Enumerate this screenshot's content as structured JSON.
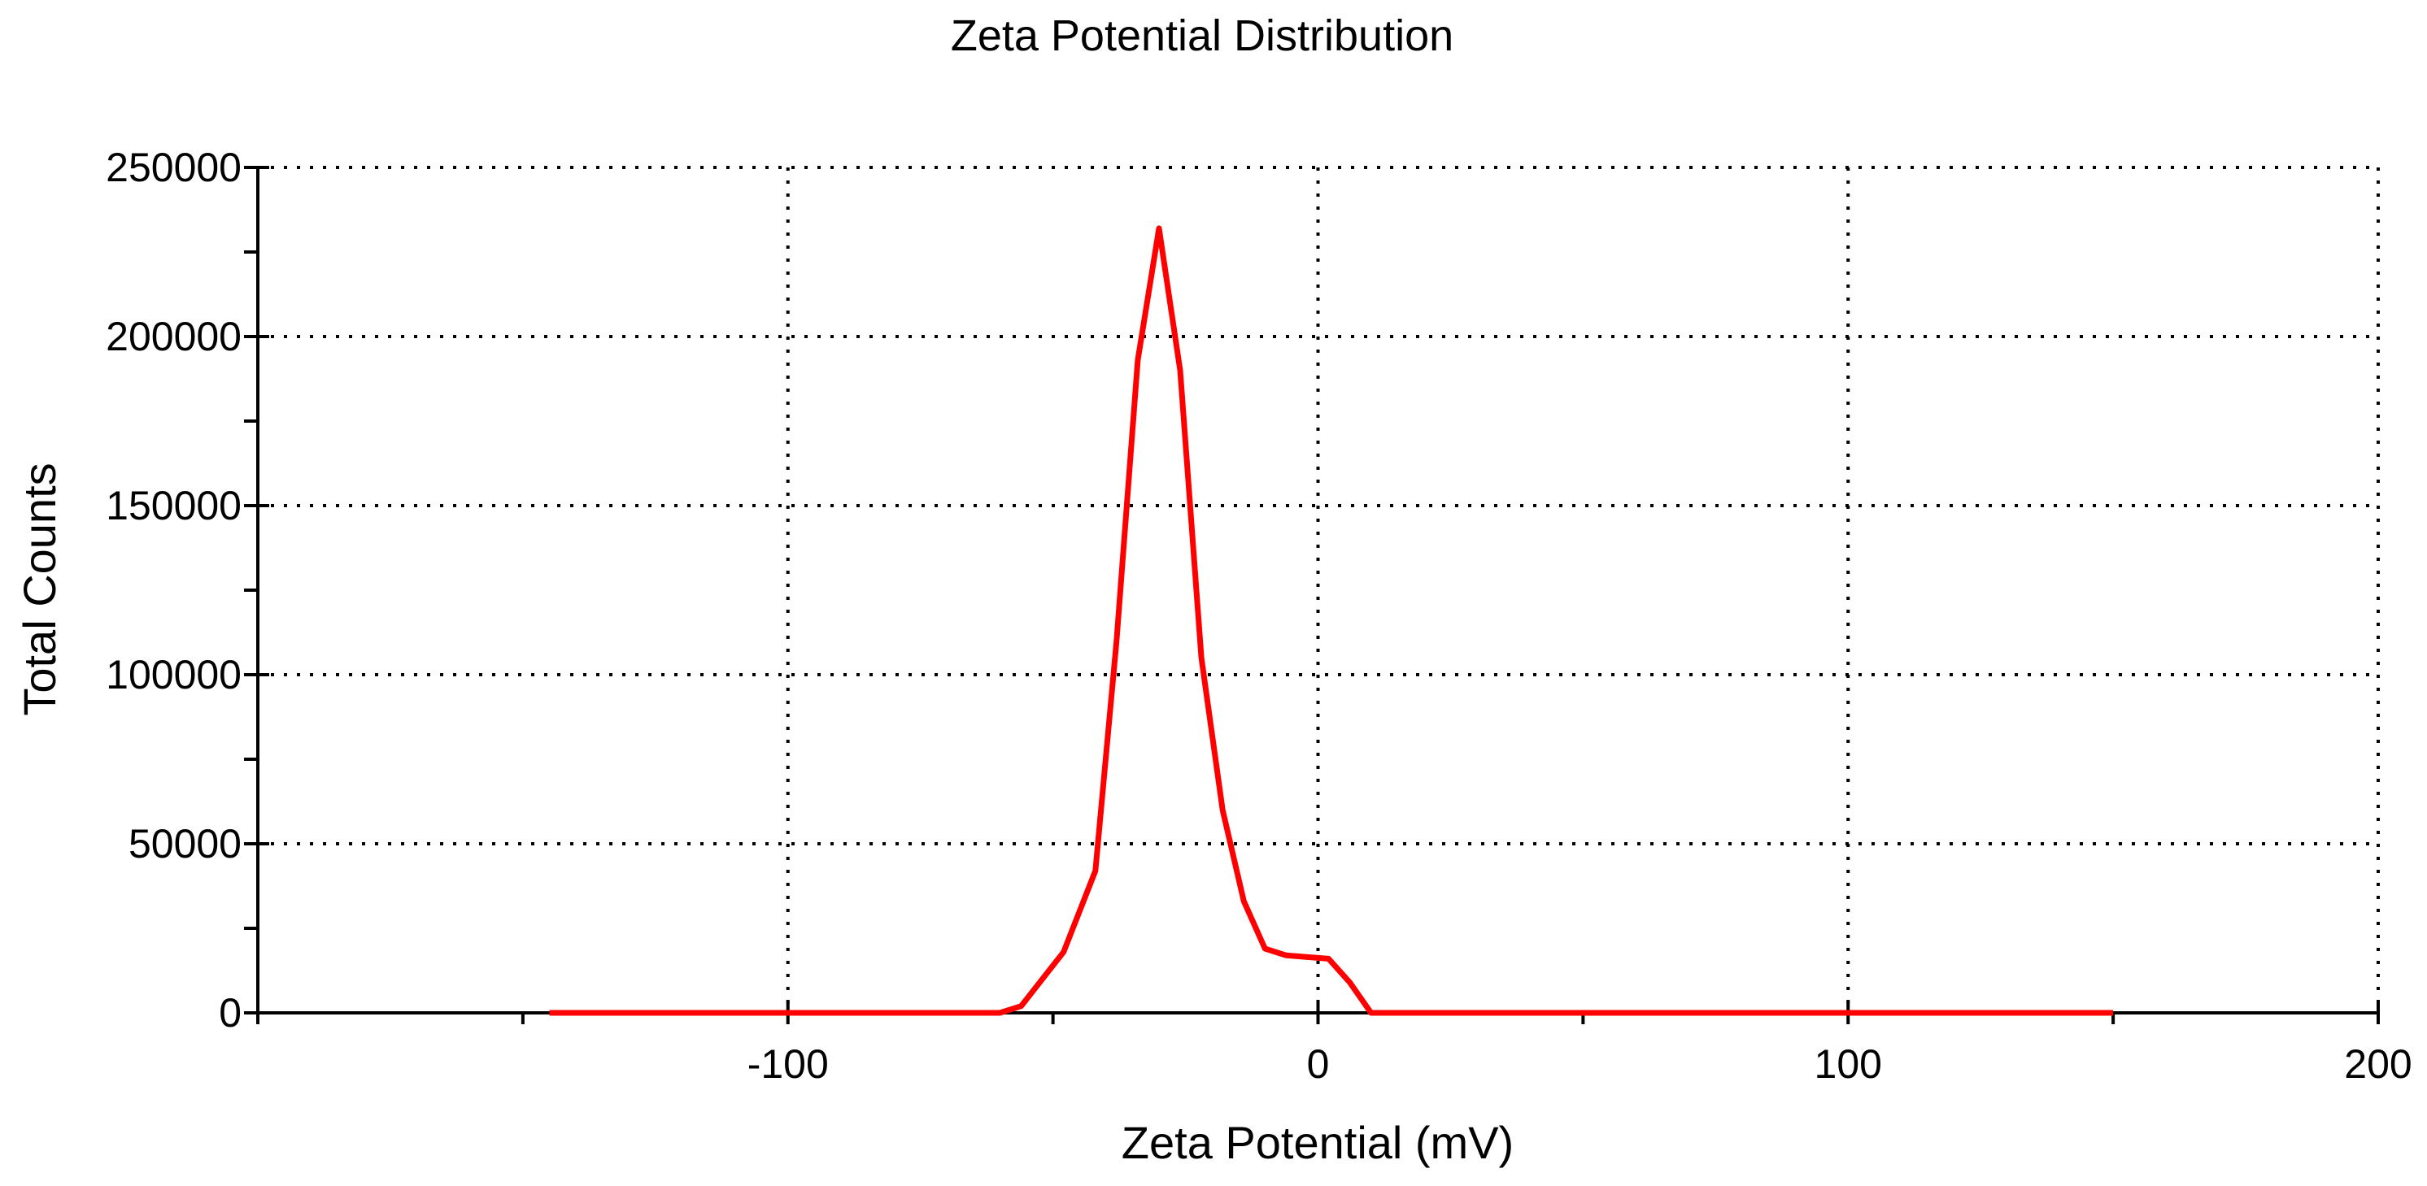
{
  "chart_data": {
    "type": "line",
    "title": "Zeta Potential Distribution",
    "xlabel": "Zeta Potential (mV)",
    "ylabel": "Total Counts",
    "xlim": [
      -200,
      200
    ],
    "ylim": [
      0,
      250000
    ],
    "x_ticks": [
      -100,
      0,
      100,
      200
    ],
    "x_tick_labels": [
      "-100",
      "0",
      "100",
      "200"
    ],
    "y_ticks": [
      0,
      50000,
      100000,
      150000,
      200000,
      250000
    ],
    "y_tick_labels": [
      "0",
      "50000",
      "100000",
      "150000",
      "200000",
      "250000"
    ],
    "grid": true,
    "line_color": "#ff0000",
    "series": [
      {
        "x": [
          -145,
          -60,
          -56,
          -52,
          -48,
          -42,
          -38,
          -34,
          -30,
          -26,
          -22,
          -18,
          -14,
          -10,
          -6,
          -2,
          2,
          6,
          10,
          20,
          60,
          100,
          150
        ],
        "y": [
          0,
          0,
          2000,
          10000,
          18000,
          42000,
          110000,
          193000,
          232000,
          190000,
          105000,
          60000,
          33000,
          19000,
          17000,
          16500,
          16000,
          9000,
          0,
          0,
          0,
          0,
          0
        ]
      }
    ]
  }
}
